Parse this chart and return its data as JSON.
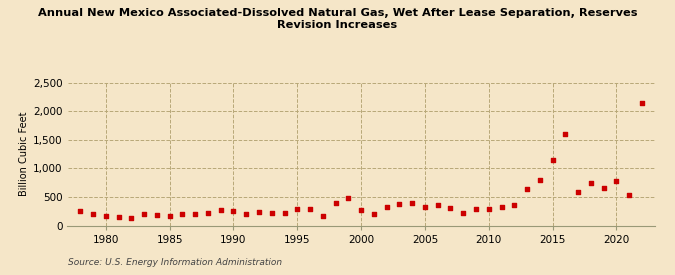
{
  "title": "Annual New Mexico Associated-Dissolved Natural Gas, Wet After Lease Separation, Reserves\nRevision Increases",
  "ylabel": "Billion Cubic Feet",
  "source": "Source: U.S. Energy Information Administration",
  "background_color": "#f5e6c8",
  "plot_bg_color": "#f5e6c8",
  "marker_color": "#cc0000",
  "years": [
    1978,
    1979,
    1980,
    1981,
    1982,
    1983,
    1984,
    1985,
    1986,
    1987,
    1988,
    1989,
    1990,
    1991,
    1992,
    1993,
    1994,
    1995,
    1996,
    1997,
    1998,
    1999,
    2000,
    2001,
    2002,
    2003,
    2004,
    2005,
    2006,
    2007,
    2008,
    2009,
    2010,
    2011,
    2012,
    2013,
    2014,
    2015,
    2016,
    2017,
    2018,
    2019,
    2020,
    2021,
    2022
  ],
  "values": [
    245,
    195,
    170,
    155,
    135,
    205,
    180,
    160,
    195,
    195,
    220,
    265,
    255,
    205,
    230,
    220,
    225,
    280,
    295,
    165,
    390,
    480,
    265,
    205,
    325,
    375,
    390,
    320,
    360,
    310,
    215,
    290,
    280,
    320,
    360,
    645,
    790,
    1140,
    1600,
    590,
    750,
    660,
    780,
    530,
    2140
  ],
  "ylim": [
    0,
    2500
  ],
  "yticks": [
    0,
    500,
    1000,
    1500,
    2000,
    2500
  ],
  "xlim": [
    1977,
    2023
  ],
  "xticks": [
    1980,
    1985,
    1990,
    1995,
    2000,
    2005,
    2010,
    2015,
    2020
  ]
}
